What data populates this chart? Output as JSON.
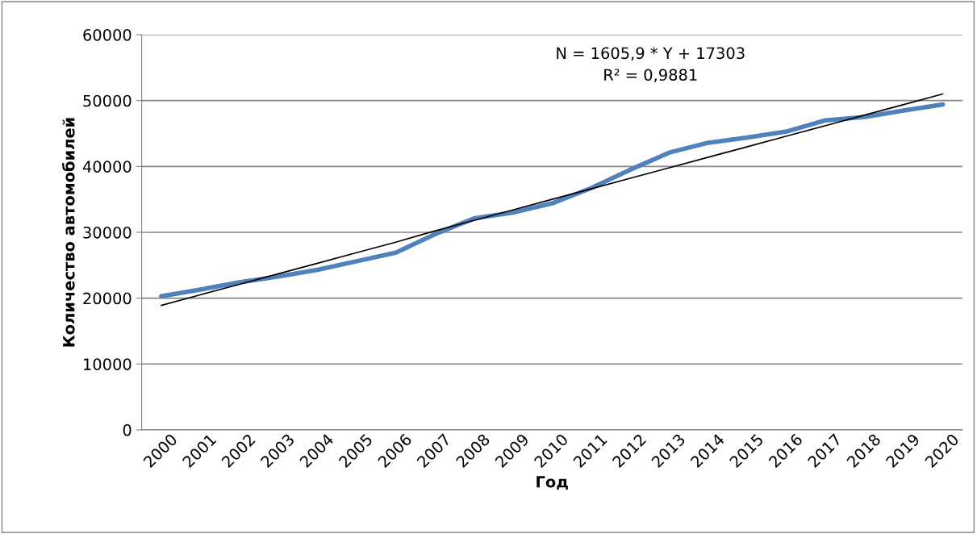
{
  "chart_data": {
    "type": "line",
    "xlabel": "Год",
    "ylabel": "Количество автомобилей",
    "categories": [
      "2000",
      "2001",
      "2002",
      "2003",
      "2004",
      "2005",
      "2006",
      "2007",
      "2008",
      "2009",
      "2010",
      "2011",
      "2012",
      "2013",
      "2014",
      "2015",
      "2016",
      "2017",
      "2018",
      "2019",
      "2020"
    ],
    "series": [
      {
        "color": "#4f81bd",
        "values": [
          20300,
          21300,
          22400,
          23300,
          24300,
          25600,
          26900,
          29700,
          32100,
          33000,
          34400,
          36700,
          39500,
          42100,
          43600,
          44400,
          45300,
          47000,
          47500,
          48500,
          49400
        ]
      },
      {
        "type": "line",
        "color": "#000000",
        "values": [
          18900,
          20500,
          22100,
          23700,
          25300,
          26900,
          28500,
          30200,
          31800,
          33400,
          35000,
          36600,
          38200,
          39800,
          41400,
          43000,
          44600,
          46200,
          47800,
          49400,
          51000
        ]
      }
    ],
    "annotations": [
      "N = 1605,9 * Y + 17303",
      "R² = 0,9881"
    ],
    "ylim": [
      0,
      60000
    ],
    "yticks": [
      0,
      10000,
      20000,
      30000,
      40000,
      50000,
      60000
    ],
    "grid": "y",
    "marker": "none",
    "line_style": "solid"
  }
}
